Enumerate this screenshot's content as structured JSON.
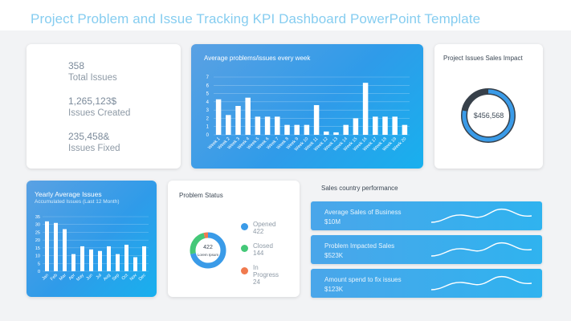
{
  "page": {
    "title": "Project Problem and Issue Tracking KPI Dashboard PowerPoint Template"
  },
  "kpis": [
    {
      "value": "358",
      "label": "Total Issues"
    },
    {
      "value": "1,265,123$",
      "label": "Issues Created"
    },
    {
      "value": "235,458&",
      "label": "Issues Fixed"
    }
  ],
  "weekly": {
    "title": "Average problems/issues every week",
    "chart_data": {
      "type": "bar",
      "title": "Average problems/issues every week",
      "categories": [
        "Week 1",
        "Week 2",
        "Week 3",
        "Week 4",
        "Week 5",
        "Week 6",
        "Week 7",
        "Week 8",
        "Week 9",
        "Week 10",
        "Week 11",
        "Week 12",
        "Week 13",
        "Week 14",
        "Week 15",
        "Week 16",
        "Week 17",
        "Week 18",
        "Week 19",
        "Week 20"
      ],
      "values": [
        4.3,
        2.4,
        3.5,
        4.5,
        2.2,
        2.2,
        2.2,
        1.2,
        1.2,
        1.2,
        3.6,
        0.4,
        0.3,
        1.2,
        2.0,
        6.3,
        2.2,
        2.2,
        2.2,
        1.2
      ],
      "yticks": [
        "0",
        "1",
        "2",
        "3",
        "4",
        "5",
        "6",
        "7"
      ],
      "ylim": [
        0,
        7
      ]
    }
  },
  "impact": {
    "title": "Project Issues Sales Impact",
    "value": "$456,568",
    "progress": 0.78
  },
  "yearly": {
    "title": "Yearly Average Issues",
    "subtitle": "Accumulated Issues (Last 12 Month)",
    "chart_data": {
      "type": "bar",
      "title": "Yearly Average Issues",
      "categories": [
        "Jan",
        "Feb",
        "Mar",
        "Apr",
        "May",
        "Jun",
        "Jul",
        "Aug",
        "Sep",
        "Oct",
        "Nov",
        "Dec"
      ],
      "values": [
        32,
        31,
        27,
        11,
        16,
        14,
        13,
        16,
        11,
        17,
        9,
        16
      ],
      "yticks": [
        "0",
        "5",
        "10",
        "15",
        "20",
        "25",
        "30",
        "35"
      ],
      "ylim": [
        0,
        35
      ]
    }
  },
  "problem": {
    "title": "Problem Status",
    "center_value": "422",
    "center_label": "Lorem Ipsum",
    "chart_data": {
      "type": "pie",
      "slices": [
        {
          "label": "Opened",
          "value": 422,
          "color": "#3a9be8"
        },
        {
          "label": "Closed",
          "value": 144,
          "color": "#44c878"
        },
        {
          "label": "In Progress",
          "value": 24,
          "color": "#f07a4e"
        }
      ]
    },
    "legend": [
      {
        "label": "Opened",
        "value": "422",
        "color": "#3a9be8"
      },
      {
        "label": "Closed",
        "value": "144",
        "color": "#44c878"
      },
      {
        "label": "In",
        "label2": "Progress",
        "value": "24",
        "color": "#f07a4e"
      }
    ]
  },
  "country": {
    "title": "Sales country performance",
    "items": [
      {
        "label": "Average Sales of Business",
        "value": "$10M"
      },
      {
        "label": "Problem Impacted Sales",
        "value": "$523K"
      },
      {
        "label": "Amount spend to fix issues",
        "value": "$123K"
      }
    ]
  }
}
